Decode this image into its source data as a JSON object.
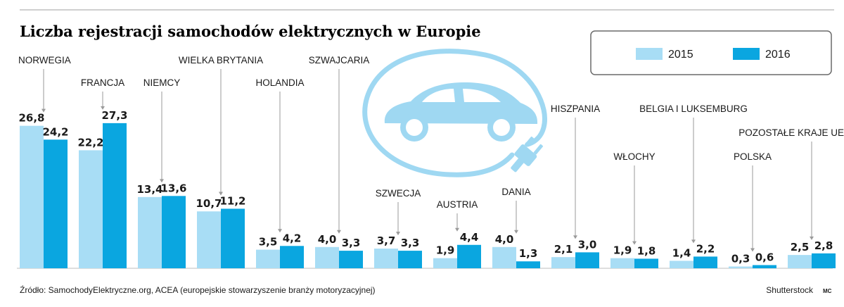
{
  "title": "Liczba rejestracji samochodów elektrycznych w Europie",
  "source": "Źródło: SamochodyElektryczne.org, ACEA (europejskie stowarzyszenie branży motoryzacyjnej)",
  "credit": "Shutterstock",
  "author_mark": "MC",
  "illustration": "electric-car-plug-icon",
  "colors": {
    "s2015": "#a8ddf5",
    "s2016": "#0aa6e0",
    "leader": "#9a9a9a",
    "icon": "#9fd8f2"
  },
  "chart_data": {
    "type": "bar",
    "categories": [
      "NORWEGIA",
      "FRANCJA",
      "NIEMCY",
      "WIELKA BRYTANIA",
      "HOLANDIA",
      "SZWAJCARIA",
      "SZWECJA",
      "AUSTRIA",
      "DANIA",
      "HISZPANIA",
      "WŁOCHY",
      "BELGIA I LUKSEMBURG",
      "POLSKA",
      "POZOSTAŁE KRAJE UE"
    ],
    "series": [
      {
        "name": "2015",
        "values": [
          26.8,
          22.2,
          13.4,
          10.7,
          3.5,
          4.0,
          3.7,
          1.9,
          4.0,
          2.1,
          1.9,
          1.4,
          0.3,
          2.5
        ],
        "labels": [
          "26,8",
          "22,2",
          "13,4",
          "10,7",
          "3,5",
          "4,0",
          "3,7",
          "1,9",
          "4,0",
          "2,1",
          "1,9",
          "1,4",
          "0,3",
          "2,5"
        ]
      },
      {
        "name": "2016",
        "values": [
          24.2,
          27.3,
          13.6,
          11.2,
          4.2,
          3.3,
          3.3,
          4.4,
          1.3,
          3.0,
          1.8,
          2.2,
          0.6,
          2.8
        ],
        "labels": [
          "24,2",
          "27,3",
          "13,6",
          "11,2",
          "4,2",
          "3,3",
          "3,3",
          "4,4",
          "1,3",
          "3,0",
          "1,8",
          "2,2",
          "0,6",
          "2,8"
        ]
      }
    ],
    "ylim": [
      0,
      30
    ],
    "xlabel": "",
    "ylabel": "",
    "grid": false,
    "legend": "top-right"
  }
}
